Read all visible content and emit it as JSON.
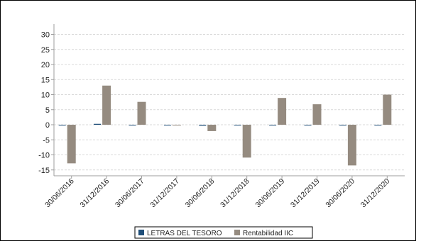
{
  "chart_data": {
    "type": "bar",
    "categories": [
      "30/06/2016",
      "31/12/2016",
      "30/06/2017",
      "31/12/2017",
      "30/06/2018",
      "31/12/2018",
      "30/06/2019",
      "31/12/2019",
      "30/06/2020",
      "31/12/2020"
    ],
    "series": [
      {
        "name": "LETRAS DEL TESORO",
        "color": "#1f4e79",
        "values": [
          -0.1,
          0.3,
          -0.2,
          -0.1,
          -0.3,
          -0.2,
          -0.1,
          -0.2,
          -0.1,
          -0.1
        ]
      },
      {
        "name": "Rentabilidad IIC",
        "color": "#958b80",
        "values": [
          -12.8,
          13.0,
          7.6,
          0.0,
          -2.1,
          -10.9,
          8.9,
          6.8,
          -13.5,
          10.0
        ]
      }
    ],
    "yticks": [
      30,
      25,
      20,
      15,
      10,
      5,
      0,
      -5,
      -10,
      -15
    ],
    "ylim": [
      -16,
      32
    ],
    "grid": true,
    "legend_position": "bottom"
  }
}
